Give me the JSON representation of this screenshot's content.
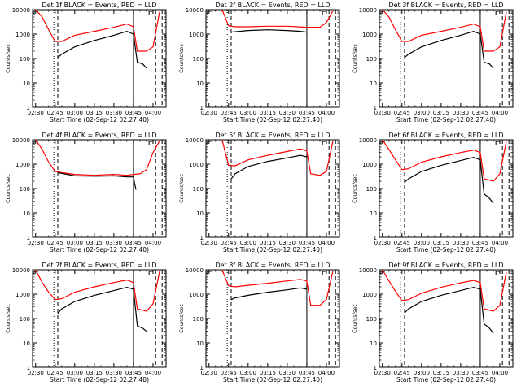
{
  "style": {
    "events_color": "#000000",
    "lld_color": "#ff0000",
    "axis_color": "#000000",
    "background": "#ffffff"
  },
  "chart_data": [
    {
      "type": "line",
      "title": "Det 1f BLACK = Events, RED = LLD",
      "xlabel": "Start Time (02-Sep-12 02:27:40)",
      "ylabel": "Counts/sec",
      "x_ticks": [
        "02:30",
        "02:45",
        "03:00",
        "03:15",
        "03:30",
        "03:45",
        "04:00"
      ],
      "y_ticks": [
        "1",
        "10",
        "100",
        "1000",
        "10000"
      ],
      "y_scale": "log",
      "xlim": [
        "02:27:40",
        "04:10:00"
      ],
      "ylim": [
        1,
        10000
      ],
      "vlines": [
        {
          "t": "02:44",
          "style": "dotted"
        },
        {
          "t": "02:47",
          "style": "dashed"
        },
        {
          "t": "03:45",
          "style": "solid"
        },
        {
          "t": "04:02",
          "style": "dashed"
        },
        {
          "t": "04:07",
          "style": "dashed"
        }
      ],
      "series": [
        {
          "role": "LLD",
          "color": "#ff0000",
          "x": [
            "02:30",
            "02:35",
            "02:40",
            "02:45",
            "02:50",
            "03:00",
            "03:15",
            "03:30",
            "03:40",
            "03:45",
            "03:48",
            "03:55",
            "04:00",
            "04:05"
          ],
          "y": [
            10000,
            5000,
            1500,
            500,
            500,
            900,
            1300,
            1900,
            2600,
            2000,
            200,
            200,
            300,
            8000
          ]
        },
        {
          "role": "Events",
          "color": "#000000",
          "x": [
            "02:47",
            "02:50",
            "03:00",
            "03:15",
            "03:30",
            "03:40",
            "03:45",
            "03:48",
            "03:52",
            "03:55"
          ],
          "y": [
            110,
            150,
            300,
            550,
            900,
            1300,
            1000,
            70,
            60,
            40
          ]
        }
      ]
    },
    {
      "type": "line",
      "title": "Det 2f BLACK = Events, RED = LLD",
      "xlabel": "Start Time (02-Sep-12 02:27:40)",
      "ylabel": "Counts/sec",
      "x_ticks": [
        "02:30",
        "02:45",
        "03:00",
        "03:15",
        "03:30",
        "03:45",
        "04:00"
      ],
      "y_ticks": [
        "1",
        "10",
        "100",
        "1000",
        "10000"
      ],
      "y_scale": "log",
      "xlim": [
        "02:27:40",
        "04:10:00"
      ],
      "ylim": [
        1,
        10000
      ],
      "vlines": [
        {
          "t": "02:44",
          "style": "dotted"
        },
        {
          "t": "02:47",
          "style": "dashed"
        },
        {
          "t": "03:45",
          "style": "solid"
        },
        {
          "t": "04:02",
          "style": "dashed"
        },
        {
          "t": "04:07",
          "style": "dashed"
        }
      ],
      "series": [
        {
          "role": "LLD",
          "color": "#ff0000",
          "x": [
            "02:40",
            "02:45",
            "02:50",
            "03:00",
            "03:15",
            "03:30",
            "03:45",
            "03:55",
            "04:00",
            "04:05"
          ],
          "y": [
            10000,
            2200,
            2000,
            2000,
            2100,
            2100,
            1900,
            1900,
            3000,
            9000
          ]
        },
        {
          "role": "Events",
          "color": "#000000",
          "x": [
            "02:47",
            "02:50",
            "03:00",
            "03:15",
            "03:30",
            "03:40",
            "03:45"
          ],
          "y": [
            1200,
            1250,
            1400,
            1500,
            1400,
            1300,
            1200
          ]
        }
      ]
    },
    {
      "type": "line",
      "title": "Det 3f BLACK = Events, RED = LLD",
      "xlabel": "Start Time (02-Sep-12 02:27:40)",
      "ylabel": "Counts/sec",
      "x_ticks": [
        "02:30",
        "02:45",
        "03:00",
        "03:15",
        "03:30",
        "03:45",
        "04:00"
      ],
      "y_ticks": [
        "1",
        "10",
        "100",
        "1000",
        "10000"
      ],
      "y_scale": "log",
      "xlim": [
        "02:27:40",
        "04:10:00"
      ],
      "ylim": [
        1,
        10000
      ],
      "vlines": [
        {
          "t": "02:44",
          "style": "dotted"
        },
        {
          "t": "02:47",
          "style": "dashed"
        },
        {
          "t": "03:45",
          "style": "solid"
        },
        {
          "t": "04:02",
          "style": "dashed"
        },
        {
          "t": "04:07",
          "style": "dashed"
        }
      ],
      "series": [
        {
          "role": "LLD",
          "color": "#ff0000",
          "x": [
            "02:30",
            "02:35",
            "02:40",
            "02:45",
            "02:50",
            "03:00",
            "03:15",
            "03:30",
            "03:40",
            "03:45",
            "03:48",
            "03:55",
            "04:00",
            "04:05"
          ],
          "y": [
            10000,
            5000,
            1500,
            500,
            500,
            900,
            1300,
            1900,
            2600,
            2000,
            200,
            200,
            300,
            8000
          ]
        },
        {
          "role": "Events",
          "color": "#000000",
          "x": [
            "02:47",
            "02:50",
            "03:00",
            "03:15",
            "03:30",
            "03:40",
            "03:45",
            "03:48",
            "03:52",
            "03:55"
          ],
          "y": [
            110,
            150,
            300,
            550,
            900,
            1300,
            1000,
            70,
            60,
            40
          ]
        }
      ]
    },
    {
      "type": "line",
      "title": "Det 4f BLACK = Events, RED = LLD",
      "xlabel": "Start Time (02-Sep-12 02:27:40)",
      "ylabel": "Counts/sec",
      "x_ticks": [
        "02:30",
        "02:45",
        "03:00",
        "03:15",
        "03:30",
        "03:45",
        "04:00"
      ],
      "y_ticks": [
        "1",
        "10",
        "100",
        "1000",
        "10000"
      ],
      "y_scale": "log",
      "xlim": [
        "02:27:40",
        "04:10:00"
      ],
      "ylim": [
        1,
        10000
      ],
      "vlines": [
        {
          "t": "02:44",
          "style": "dotted"
        },
        {
          "t": "02:47",
          "style": "dashed"
        },
        {
          "t": "03:45",
          "style": "solid"
        },
        {
          "t": "04:02",
          "style": "dashed"
        },
        {
          "t": "04:07",
          "style": "dashed"
        }
      ],
      "series": [
        {
          "role": "LLD",
          "color": "#ff0000",
          "x": [
            "02:30",
            "02:35",
            "02:40",
            "02:45",
            "02:50",
            "03:00",
            "03:15",
            "03:30",
            "03:40",
            "03:45",
            "03:50",
            "03:55",
            "04:00",
            "04:05"
          ],
          "y": [
            10000,
            4000,
            1200,
            500,
            450,
            380,
            350,
            380,
            350,
            380,
            400,
            600,
            3000,
            9000
          ]
        },
        {
          "role": "Events",
          "color": "#000000",
          "x": [
            "02:47",
            "02:50",
            "03:00",
            "03:15",
            "03:30",
            "03:40",
            "03:45",
            "03:46",
            "03:47"
          ],
          "y": [
            450,
            420,
            330,
            320,
            330,
            300,
            300,
            150,
            90
          ]
        }
      ]
    },
    {
      "type": "line",
      "title": "Det 5f BLACK = Events, RED = LLD",
      "xlabel": "Start Time (02-Sep-12 02:27:40)",
      "ylabel": "Counts/sec",
      "x_ticks": [
        "02:30",
        "02:45",
        "03:00",
        "03:15",
        "03:30",
        "03:45",
        "04:00"
      ],
      "y_ticks": [
        "1",
        "10",
        "100",
        "1000",
        "10000"
      ],
      "y_scale": "log",
      "xlim": [
        "02:27:40",
        "04:10:00"
      ],
      "ylim": [
        1,
        10000
      ],
      "vlines": [
        {
          "t": "02:44",
          "style": "dotted"
        },
        {
          "t": "02:47",
          "style": "dashed"
        },
        {
          "t": "03:45",
          "style": "solid"
        },
        {
          "t": "04:02",
          "style": "dashed"
        },
        {
          "t": "04:07",
          "style": "dashed"
        }
      ],
      "series": [
        {
          "role": "LLD",
          "color": "#ff0000",
          "x": [
            "02:40",
            "02:45",
            "02:50",
            "03:00",
            "03:15",
            "03:30",
            "03:40",
            "03:45",
            "03:48",
            "03:55",
            "04:00",
            "04:05"
          ],
          "y": [
            10000,
            900,
            850,
            1500,
            2300,
            3300,
            4200,
            3500,
            400,
            350,
            500,
            9000
          ]
        },
        {
          "role": "Events",
          "color": "#000000",
          "x": [
            "02:47",
            "02:50",
            "03:00",
            "03:15",
            "03:30",
            "03:40",
            "03:45"
          ],
          "y": [
            250,
            400,
            800,
            1300,
            1800,
            2300,
            2000
          ]
        }
      ]
    },
    {
      "type": "line",
      "title": "Det 6f BLACK = Events, RED = LLD",
      "xlabel": "Start Time (02-Sep-12 02:27:40)",
      "ylabel": "Counts/sec",
      "x_ticks": [
        "02:30",
        "02:45",
        "03:00",
        "03:15",
        "03:30",
        "03:45",
        "04:00"
      ],
      "y_ticks": [
        "1",
        "10",
        "100",
        "1000",
        "10000"
      ],
      "y_scale": "log",
      "xlim": [
        "02:27:40",
        "04:10:00"
      ],
      "ylim": [
        1,
        10000
      ],
      "vlines": [
        {
          "t": "02:44",
          "style": "dotted"
        },
        {
          "t": "02:47",
          "style": "dashed"
        },
        {
          "t": "03:45",
          "style": "solid"
        },
        {
          "t": "04:02",
          "style": "dashed"
        },
        {
          "t": "04:07",
          "style": "dashed"
        }
      ],
      "series": [
        {
          "role": "LLD",
          "color": "#ff0000",
          "x": [
            "02:30",
            "02:35",
            "02:40",
            "02:45",
            "02:50",
            "03:00",
            "03:15",
            "03:30",
            "03:40",
            "03:45",
            "03:48",
            "03:55",
            "04:00",
            "04:05"
          ],
          "y": [
            10000,
            4000,
            1500,
            600,
            650,
            1200,
            2000,
            3000,
            3800,
            3000,
            250,
            200,
            400,
            8500
          ]
        },
        {
          "role": "Events",
          "color": "#000000",
          "x": [
            "02:47",
            "02:50",
            "03:00",
            "03:15",
            "03:30",
            "03:40",
            "03:45",
            "03:48",
            "03:52",
            "03:55"
          ],
          "y": [
            180,
            250,
            500,
            900,
            1400,
            1900,
            1500,
            60,
            40,
            25
          ]
        }
      ]
    },
    {
      "type": "line",
      "title": "Det 7f BLACK = Events, RED = LLD",
      "xlabel": "Start Time (02-Sep-12 02:27:40)",
      "ylabel": "Counts/sec",
      "x_ticks": [
        "02:30",
        "02:45",
        "03:00",
        "03:15",
        "03:30",
        "03:45",
        "04:00"
      ],
      "y_ticks": [
        "1",
        "10",
        "100",
        "1000",
        "10000"
      ],
      "y_scale": "log",
      "xlim": [
        "02:27:40",
        "04:10:00"
      ],
      "ylim": [
        1,
        10000
      ],
      "vlines": [
        {
          "t": "02:44",
          "style": "dotted"
        },
        {
          "t": "02:47",
          "style": "dashed"
        },
        {
          "t": "03:45",
          "style": "solid"
        },
        {
          "t": "04:02",
          "style": "dashed"
        },
        {
          "t": "04:07",
          "style": "dashed"
        }
      ],
      "series": [
        {
          "role": "LLD",
          "color": "#ff0000",
          "x": [
            "02:30",
            "02:35",
            "02:40",
            "02:45",
            "02:50",
            "03:00",
            "03:15",
            "03:30",
            "03:40",
            "03:45",
            "03:48",
            "03:55",
            "04:00",
            "04:05"
          ],
          "y": [
            10000,
            3000,
            1200,
            600,
            650,
            1200,
            2000,
            3000,
            3800,
            3000,
            250,
            200,
            400,
            8500
          ]
        },
        {
          "role": "Events",
          "color": "#000000",
          "x": [
            "02:47",
            "02:50",
            "03:00",
            "03:15",
            "03:30",
            "03:40",
            "03:45",
            "03:48",
            "03:52",
            "03:55"
          ],
          "y": [
            160,
            250,
            500,
            900,
            1400,
            1900,
            1600,
            50,
            40,
            30
          ]
        }
      ]
    },
    {
      "type": "line",
      "title": "Det 8f BLACK = Events, RED = LLD",
      "xlabel": "Start Time (02-Sep-12 02:27:40)",
      "ylabel": "Counts/sec",
      "x_ticks": [
        "02:30",
        "02:45",
        "03:00",
        "03:15",
        "03:30",
        "03:45",
        "04:00"
      ],
      "y_ticks": [
        "1",
        "10",
        "100",
        "1000",
        "10000"
      ],
      "y_scale": "log",
      "xlim": [
        "02:27:40",
        "04:10:00"
      ],
      "ylim": [
        1,
        10000
      ],
      "vlines": [
        {
          "t": "02:44",
          "style": "dotted"
        },
        {
          "t": "02:47",
          "style": "dashed"
        },
        {
          "t": "03:45",
          "style": "solid"
        },
        {
          "t": "04:02",
          "style": "dashed"
        },
        {
          "t": "04:07",
          "style": "dashed"
        }
      ],
      "series": [
        {
          "role": "LLD",
          "color": "#ff0000",
          "x": [
            "02:40",
            "02:45",
            "02:50",
            "03:00",
            "03:15",
            "03:30",
            "03:40",
            "03:45",
            "03:48",
            "03:55",
            "04:00",
            "04:05"
          ],
          "y": [
            10000,
            2200,
            2000,
            2300,
            2800,
            3500,
            4000,
            3500,
            350,
            350,
            600,
            9000
          ]
        },
        {
          "role": "Events",
          "color": "#000000",
          "x": [
            "02:47",
            "02:50",
            "03:00",
            "03:15",
            "03:30",
            "03:40",
            "03:45"
          ],
          "y": [
            600,
            700,
            900,
            1200,
            1500,
            1800,
            1600
          ]
        }
      ]
    },
    {
      "type": "line",
      "title": "Det 9f BLACK = Events, RED = LLD",
      "xlabel": "Start Time (02-Sep-12 02:27:40)",
      "ylabel": "Counts/sec",
      "x_ticks": [
        "02:30",
        "02:45",
        "03:00",
        "03:15",
        "03:30",
        "03:45",
        "04:00"
      ],
      "y_ticks": [
        "1",
        "10",
        "100",
        "1000",
        "10000"
      ],
      "y_scale": "log",
      "xlim": [
        "02:27:40",
        "04:10:00"
      ],
      "ylim": [
        1,
        10000
      ],
      "vlines": [
        {
          "t": "02:44",
          "style": "dotted"
        },
        {
          "t": "02:47",
          "style": "dashed"
        },
        {
          "t": "03:45",
          "style": "solid"
        },
        {
          "t": "04:02",
          "style": "dashed"
        },
        {
          "t": "04:07",
          "style": "dashed"
        }
      ],
      "series": [
        {
          "role": "LLD",
          "color": "#ff0000",
          "x": [
            "02:30",
            "02:35",
            "02:40",
            "02:45",
            "02:50",
            "03:00",
            "03:15",
            "03:30",
            "03:40",
            "03:45",
            "03:48",
            "03:55",
            "04:00",
            "04:05"
          ],
          "y": [
            10000,
            3500,
            1300,
            550,
            600,
            1100,
            1900,
            2900,
            3700,
            3000,
            250,
            200,
            350,
            8000
          ]
        },
        {
          "role": "Events",
          "color": "#000000",
          "x": [
            "02:47",
            "02:50",
            "03:00",
            "03:15",
            "03:30",
            "03:40",
            "03:45",
            "03:48",
            "03:52",
            "03:55"
          ],
          "y": [
            170,
            250,
            500,
            900,
            1400,
            1900,
            1600,
            60,
            40,
            25
          ]
        }
      ]
    }
  ]
}
